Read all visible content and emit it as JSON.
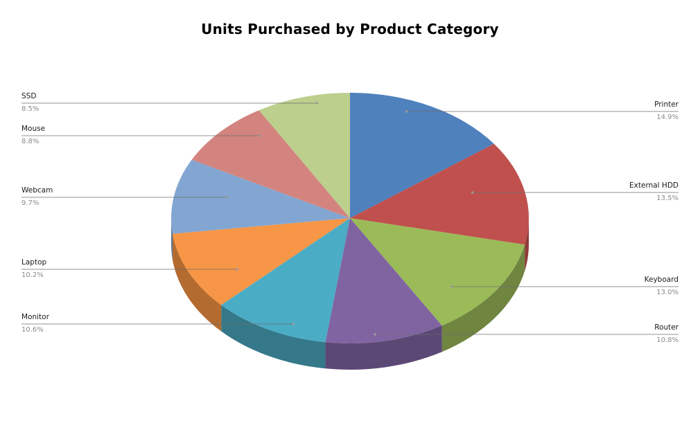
{
  "chart_data": {
    "type": "pie",
    "title": "Units Purchased by Product Category",
    "slices": [
      {
        "label": "Printer",
        "percent_label": "14.9%",
        "value": 14.9,
        "color": "#4F81BD",
        "side_color": "#3A6190"
      },
      {
        "label": "External HDD",
        "percent_label": "13.5%",
        "value": 13.5,
        "color": "#C0504D",
        "side_color": "#8E3B39"
      },
      {
        "label": "Keyboard",
        "percent_label": "13.0%",
        "value": 13.0,
        "color": "#9BBB59",
        "side_color": "#6F8540"
      },
      {
        "label": "Router",
        "percent_label": "10.8%",
        "value": 10.8,
        "color": "#8064A2",
        "side_color": "#5C4875"
      },
      {
        "label": "Monitor",
        "percent_label": "10.6%",
        "value": 10.6,
        "color": "#4BACC6",
        "side_color": "#347889"
      },
      {
        "label": "Laptop",
        "percent_label": "10.2%",
        "value": 10.2,
        "color": "#F79646",
        "side_color": "#B36B30"
      },
      {
        "label": "Webcam",
        "percent_label": "9.7%",
        "value": 9.7,
        "color": "#82A6D1",
        "side_color": "#5E7898"
      },
      {
        "label": "Mouse",
        "percent_label": "8.8%",
        "value": 8.8,
        "color": "#D3847F",
        "side_color": "#99605C"
      },
      {
        "label": "SSD",
        "percent_label": "8.5%",
        "value": 8.5,
        "color": "#BCCF8D",
        "side_color": "#899766"
      }
    ],
    "style": "3d-pie",
    "start_angle": "top, clockwise",
    "legend": "none (labels with leader lines)"
  }
}
